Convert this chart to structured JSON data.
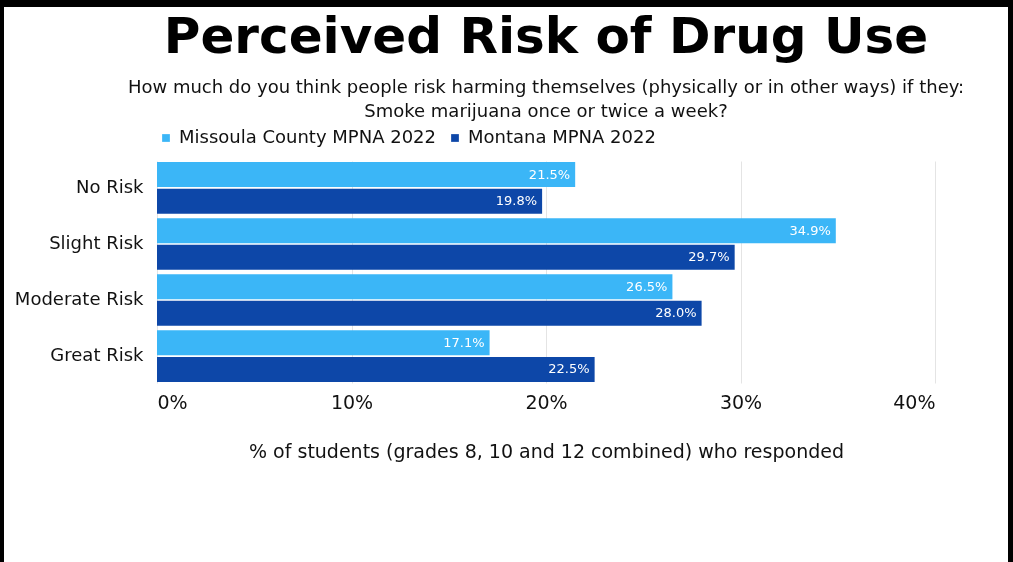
{
  "chart_data": {
    "type": "bar",
    "orientation": "horizontal",
    "title": "Perceived Risk of Drug Use",
    "subtitle": "How much do you think people risk harming themselves (physically or in other ways) if they:\nSmoke marijuana once or twice a week?",
    "xlabel": "% of students (grades 8, 10 and 12 combined) who responded",
    "categories": [
      "No Risk",
      "Slight Risk",
      "Moderate Risk",
      "Great Risk"
    ],
    "series": [
      {
        "name": "Missoula County MPNA 2022",
        "color": "#3bb6f7",
        "values": [
          21.5,
          34.9,
          26.5,
          17.1
        ],
        "value_labels": [
          "21.5%",
          "34.9%",
          "26.5%",
          "17.1%"
        ]
      },
      {
        "name": "Montana MPNA 2022",
        "color": "#0d47a8",
        "values": [
          19.8,
          29.7,
          28.0,
          22.5
        ],
        "value_labels": [
          "19.8%",
          "29.7%",
          "28.0%",
          "22.5%"
        ]
      }
    ],
    "xlim": [
      0,
      40
    ],
    "xticks": [
      {
        "value": 0,
        "label": "0%"
      },
      {
        "value": 10,
        "label": "10%"
      },
      {
        "value": 20,
        "label": "20%"
      },
      {
        "value": 30,
        "label": "30%"
      },
      {
        "value": 40,
        "label": "40%"
      }
    ],
    "grid": "x",
    "legend": "top"
  }
}
